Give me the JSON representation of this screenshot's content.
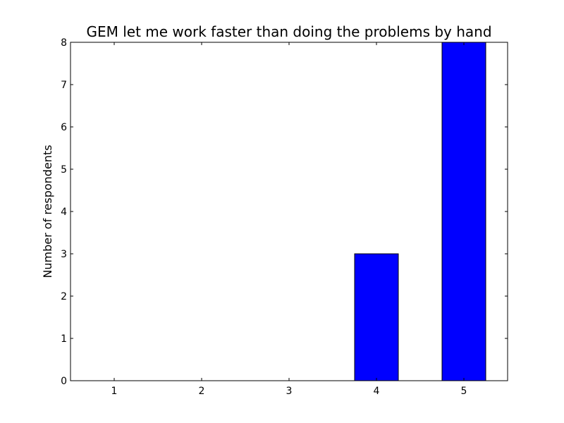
{
  "chart_data": {
    "type": "bar",
    "title": "GEM let me work faster than doing the problems by hand",
    "xlabel": "",
    "ylabel": "Number of respondents",
    "categories": [
      "1",
      "2",
      "3",
      "4",
      "5"
    ],
    "values": [
      0,
      0,
      0,
      3,
      8
    ],
    "ylim": [
      0,
      8
    ],
    "yticks": [
      "0",
      "1",
      "2",
      "3",
      "4",
      "5",
      "6",
      "7",
      "8"
    ],
    "grid": false,
    "bar_color": "#0000ff"
  }
}
